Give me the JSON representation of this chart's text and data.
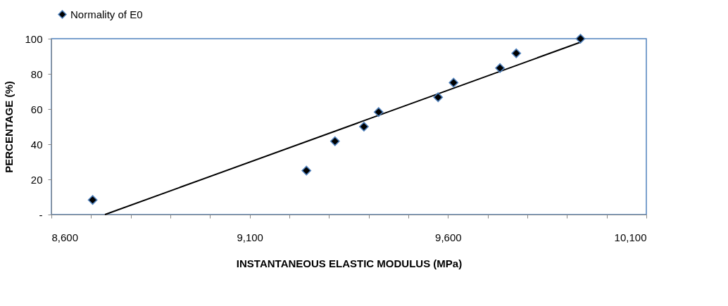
{
  "chart_data": {
    "type": "scatter",
    "xlabel": "INSTANTANEOUS ELASTIC MODULUS (MPa)",
    "ylabel": "PERCENTAGE (%)",
    "series": [
      {
        "name": "Normality of E0",
        "color": "#000000",
        "marker": "diamond",
        "x": [
          8704,
          9243,
          9315,
          9388,
          9425,
          9575,
          9614,
          9731,
          9772,
          9934
        ],
        "values": [
          8.3,
          25,
          41.7,
          50,
          58.3,
          66.7,
          75,
          83.3,
          91.7,
          100
        ]
      },
      {
        "type": "line",
        "color": "#000000",
        "line_style": "solid",
        "x": [
          8735,
          9934
        ],
        "values": [
          0,
          98
        ]
      }
    ],
    "xlim": [
      8600,
      10100
    ],
    "xticks": [
      {
        "value": 8600,
        "label": "8,600"
      },
      {
        "value": 8700,
        "label": null
      },
      {
        "value": 8800,
        "label": null
      },
      {
        "value": 8900,
        "label": null
      },
      {
        "value": 9000,
        "label": null
      },
      {
        "value": 9100,
        "label": "9,100"
      },
      {
        "value": 9200,
        "label": null
      },
      {
        "value": 9300,
        "label": null
      },
      {
        "value": 9400,
        "label": null
      },
      {
        "value": 9500,
        "label": null
      },
      {
        "value": 9600,
        "label": "9,600"
      },
      {
        "value": 9700,
        "label": null
      },
      {
        "value": 9800,
        "label": null
      },
      {
        "value": 9900,
        "label": null
      },
      {
        "value": 10000,
        "label": null
      },
      {
        "value": 10100,
        "label": "10,100"
      }
    ],
    "ylim": [
      0,
      100
    ],
    "yticks": [
      {
        "value": 0,
        "label": "-"
      },
      20,
      40,
      60,
      80,
      100
    ],
    "grid": false,
    "legend": "top"
  }
}
